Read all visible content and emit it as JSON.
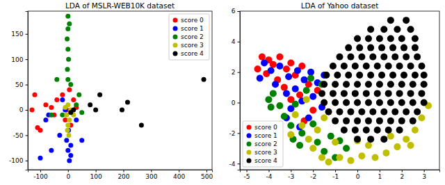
{
  "chart_data": [
    {
      "type": "scatter",
      "title": "LDA of MSLR-WEB10K dataset",
      "xlim": [
        -145,
        520
      ],
      "ylim": [
        -118,
        195
      ],
      "xticks": [
        -100,
        0,
        100,
        200,
        300,
        400,
        500
      ],
      "yticks": [
        -100,
        -50,
        0,
        50,
        100,
        150
      ],
      "legend": "upper right",
      "series": [
        {
          "name": "score 0",
          "color": "#ff0000",
          "x": [
            -120,
            -110,
            -100,
            -80,
            -60,
            -40,
            -20,
            -10,
            10,
            20,
            -5,
            -50,
            -130,
            5,
            30
          ],
          "y": [
            30,
            -35,
            -40,
            10,
            5,
            20,
            30,
            -20,
            -30,
            20,
            0,
            -10,
            0,
            40,
            5
          ]
        },
        {
          "name": "score 1",
          "color": "#0000ff",
          "x": [
            -100,
            -70,
            -30,
            -10,
            5,
            0,
            -5,
            10,
            2,
            -20,
            -80,
            10,
            30,
            50,
            -60
          ],
          "y": [
            -95,
            -10,
            -50,
            0,
            -100,
            -80,
            -60,
            -90,
            -40,
            20,
            -20,
            -70,
            -20,
            -60,
            -80
          ]
        },
        {
          "name": "score 2",
          "color": "#008000",
          "x": [
            0,
            0,
            5,
            -3,
            0,
            2,
            -2,
            0,
            -40,
            -60,
            30,
            50,
            -20,
            10,
            40
          ],
          "y": [
            185,
            160,
            170,
            140,
            120,
            100,
            80,
            60,
            60,
            -10,
            10,
            -5,
            -10,
            50,
            30
          ]
        },
        {
          "name": "score 3",
          "color": "#bfbf00",
          "x": [
            0,
            5,
            -5,
            10,
            0,
            3,
            -2,
            20,
            -10
          ],
          "y": [
            -30,
            -20,
            -10,
            0,
            10,
            -50,
            -40,
            -10,
            5
          ]
        },
        {
          "name": "score 4",
          "color": "#000000",
          "x": [
            490,
            265,
            215,
            195,
            115,
            100,
            80,
            20,
            10
          ],
          "y": [
            60,
            -30,
            15,
            0,
            30,
            0,
            10,
            0,
            -5
          ]
        }
      ]
    },
    {
      "type": "scatter",
      "title": "LDA of Yahoo dataset",
      "xlim": [
        -5.3,
        3.7
      ],
      "ylim": [
        -4.4,
        6
      ],
      "xticks": [
        -5,
        -4,
        -3,
        -2,
        -1,
        0,
        1,
        2,
        3
      ],
      "yticks": [
        -4,
        -2,
        0,
        2,
        4,
        6
      ],
      "legend": "lower left",
      "series": [
        {
          "name": "score 0",
          "color": "#ff0000",
          "x": [
            -4.3,
            -4,
            -3.8,
            -3.5,
            -3.2,
            -3,
            -2.8,
            -2.5,
            -4.5,
            -3.6,
            -2.2,
            -4.1,
            -3.3,
            -2.6,
            -1.8,
            -2,
            -3,
            -2.4
          ],
          "y": [
            3,
            2.8,
            2.5,
            3,
            2.2,
            2.6,
            1.8,
            2.4,
            2.2,
            1.5,
            1.2,
            1.9,
            1,
            0.5,
            0.8,
            -0.5,
            0.2,
            -1.2
          ]
        },
        {
          "name": "score 1",
          "color": "#0000ff",
          "x": [
            -4.2,
            -3.9,
            -3.5,
            -3.1,
            -2.7,
            -2.4,
            -2.1,
            -1.8,
            -3.7,
            -3.2,
            -2.8,
            -2.5,
            -2,
            -1.6,
            -3,
            -2.2,
            -1.5,
            -4.4,
            -3.2,
            -2.6
          ],
          "y": [
            2.6,
            2.1,
            2.4,
            1.7,
            2.1,
            1.5,
            2,
            1.3,
            1.2,
            0.6,
            0.9,
            0.1,
            0.4,
            -0.3,
            -0.4,
            -1,
            1.8,
            1.6,
            -1,
            -1.6
          ]
        },
        {
          "name": "score 2",
          "color": "#008000",
          "x": [
            -3.8,
            -3.5,
            -3.3,
            -3,
            -2.8,
            -2.5,
            -2.3,
            -2,
            -1.8,
            -1.5,
            -1.2,
            -1,
            -0.5,
            -2.9,
            -3.9,
            -1.6,
            -2.1,
            -4,
            -0.8,
            -2.6
          ],
          "y": [
            0.6,
            -0.2,
            -0.9,
            -1.5,
            -0.1,
            -2,
            0.8,
            -1.4,
            -2.6,
            -3.2,
            -2.2,
            -3.6,
            -3,
            -2.4,
            -0.3,
            1.2,
            1.6,
            0.2,
            -2.5,
            -2.8
          ]
        },
        {
          "name": "score 3",
          "color": "#bfbf00",
          "x": [
            -2.5,
            -2.2,
            -2,
            -1.6,
            -1.3,
            -0.8,
            -0.3,
            0.2,
            0.8,
            1.3,
            1.8,
            2.2,
            2.6,
            2.9,
            3.2,
            -1,
            0.5,
            1.5,
            -1.8,
            -2.8,
            -2.3,
            -1.5,
            0,
            2.4,
            -3
          ],
          "y": [
            -1.5,
            -2.4,
            -3,
            -3.6,
            -3.9,
            -3.6,
            -3.8,
            -3.5,
            -3.6,
            -3.3,
            -2.9,
            -2.4,
            -1.8,
            -1,
            -0.2,
            -2.6,
            -2.8,
            -2.2,
            -1.8,
            -0.8,
            0.2,
            -1,
            -2.5,
            -2.8,
            -2.1
          ]
        },
        {
          "name": "score 4",
          "color": "#000000",
          "x": [
            1.5,
            2.2,
            0.6,
            1.2,
            1.8,
            2.4,
            0,
            0.5,
            1,
            1.5,
            2,
            2.6,
            -0.4,
            0.1,
            0.6,
            1.1,
            1.6,
            2.1,
            2.6,
            -0.8,
            -0.3,
            0.2,
            0.7,
            1.2,
            1.7,
            2.2,
            2.7,
            -1.1,
            -0.6,
            -0.1,
            0.4,
            0.9,
            1.4,
            1.9,
            2.4,
            2.9,
            -1.4,
            -0.9,
            -0.4,
            0.1,
            0.6,
            1.1,
            1.6,
            2.1,
            2.6,
            3,
            -1.5,
            -1,
            -0.5,
            0,
            0.5,
            1,
            1.5,
            2,
            2.5,
            3,
            -1.6,
            -1.1,
            -0.6,
            -0.1,
            0.4,
            0.9,
            1.4,
            1.9,
            2.4,
            2.9,
            -1.5,
            -1,
            -0.5,
            0,
            0.5,
            1,
            1.5,
            2,
            2.5,
            3,
            -1.3,
            -0.8,
            -0.3,
            0.2,
            0.7,
            1.2,
            1.7,
            2.2,
            2.7,
            -1,
            -0.5,
            0,
            0.5,
            1,
            1.5,
            2,
            2.5,
            -0.6,
            -0.1,
            0.4,
            0.9,
            1.4,
            1.9,
            0,
            0.6,
            1.2
          ],
          "y": [
            5.4,
            5.4,
            4.8,
            4.8,
            4.8,
            4.8,
            4.2,
            4.2,
            4.2,
            4.2,
            4.2,
            4.2,
            3.6,
            3.6,
            3.6,
            3.6,
            3.6,
            3.6,
            3.6,
            3,
            3,
            3,
            3,
            3,
            3,
            3,
            3,
            2.4,
            2.4,
            2.4,
            2.4,
            2.4,
            2.4,
            2.4,
            2.4,
            2.4,
            1.8,
            1.8,
            1.8,
            1.8,
            1.8,
            1.8,
            1.8,
            1.8,
            1.8,
            1.8,
            1.2,
            1.2,
            1.2,
            1.2,
            1.2,
            1.2,
            1.2,
            1.2,
            1.2,
            1.2,
            0.6,
            0.6,
            0.6,
            0.6,
            0.6,
            0.6,
            0.6,
            0.6,
            0.6,
            0.6,
            0,
            0,
            0,
            0,
            0,
            0,
            0,
            0,
            0,
            0,
            -0.6,
            -0.6,
            -0.6,
            -0.6,
            -0.6,
            -0.6,
            -0.6,
            -0.6,
            -0.6,
            -1.2,
            -1.2,
            -1.2,
            -1.2,
            -1.2,
            -1.2,
            -1.2,
            -1.2,
            -1.8,
            -1.8,
            -1.8,
            -1.8,
            -1.8,
            -1.8,
            -2.4,
            -2.4,
            -2.4
          ]
        }
      ]
    }
  ]
}
